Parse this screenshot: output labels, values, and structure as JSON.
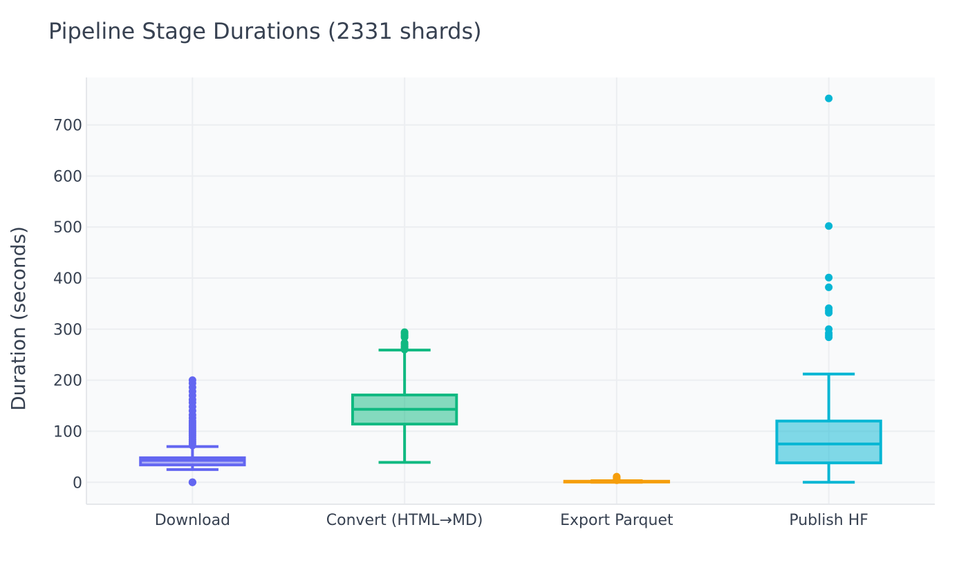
{
  "chart_data": {
    "type": "box",
    "title": "Pipeline Stage Durations (2331 shards)",
    "xlabel": "",
    "ylabel": "Duration (seconds)",
    "ylim": [
      -43,
      793
    ],
    "yticks": [
      0,
      100,
      200,
      300,
      400,
      500,
      600,
      700
    ],
    "grid": true,
    "legend": "none",
    "categories": [
      "Download",
      "Convert (HTML→MD)",
      "Export Parquet",
      "Publish HF"
    ],
    "series": [
      {
        "category": "Download",
        "color": "#6366f1",
        "min": 25,
        "q1": 34,
        "median": 43,
        "q3": 48,
        "max": 70,
        "outliers": [
          0,
          0,
          0,
          72,
          76,
          80,
          84,
          88,
          92,
          96,
          100,
          104,
          108,
          112,
          116,
          120,
          126,
          132,
          140,
          148,
          156,
          162,
          170,
          178,
          186,
          194,
          200
        ]
      },
      {
        "category": "Convert (HTML→MD)",
        "color": "#10b981",
        "min": 39,
        "q1": 114,
        "median": 143,
        "q3": 171,
        "max": 259,
        "outliers": [
          260,
          263,
          266,
          270,
          273,
          284,
          287,
          291,
          294
        ]
      },
      {
        "category": "Export Parquet",
        "color": "#f59e0b",
        "min": 0,
        "q1": 0.5,
        "median": 1.2,
        "q3": 2,
        "max": 3,
        "outliers": [
          4,
          6,
          8,
          10,
          11
        ]
      },
      {
        "category": "Publish HF",
        "color": "#06b6d4",
        "min": 0,
        "q1": 38,
        "median": 75,
        "q3": 120,
        "max": 212,
        "outliers": [
          284,
          288,
          292,
          300,
          332,
          336,
          341,
          382,
          401,
          502,
          752
        ]
      }
    ]
  }
}
